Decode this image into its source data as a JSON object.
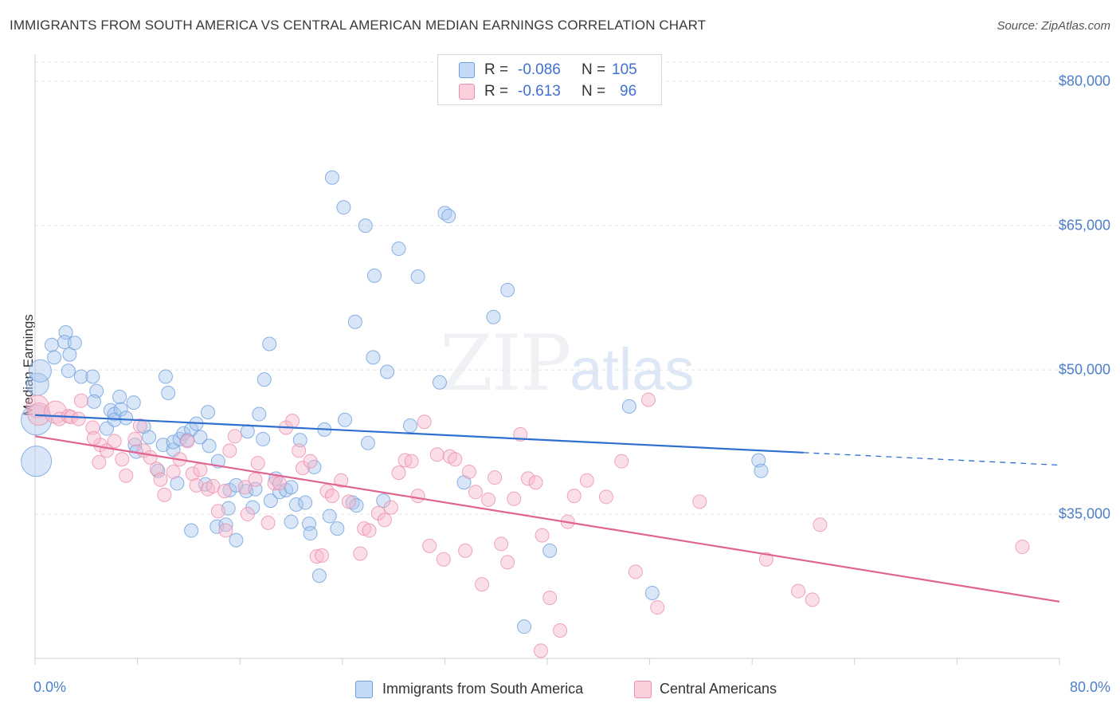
{
  "title": "IMMIGRANTS FROM SOUTH AMERICA VS CENTRAL AMERICAN MEDIAN EARNINGS CORRELATION CHART",
  "source": "Source: ZipAtlas.com",
  "watermark": {
    "zip": "ZIP",
    "atlas": "atlas"
  },
  "legend_top": [
    {
      "r_label": "R =",
      "r_value": "-0.086",
      "n_label": "N =",
      "n_value": "105",
      "color": "#a9c8f0"
    },
    {
      "r_label": "R =",
      "r_value": "-0.613",
      "n_label": "N =",
      "n_value": "96",
      "color": "#f7b8cb"
    }
  ],
  "legend_bottom": [
    {
      "label": "Immigrants from South America",
      "color": "#a9c8f0"
    },
    {
      "label": "Central Americans",
      "color": "#f7b8cb"
    }
  ],
  "chart_data": {
    "type": "scatter",
    "xlabel": "",
    "ylabel": "Median Earnings",
    "xlim": [
      0,
      80
    ],
    "ylim": [
      20000,
      82000
    ],
    "x_tick_labels": [
      "0.0%",
      "80.0%"
    ],
    "y_ticks": [
      {
        "value": 35000,
        "label": "$35,000"
      },
      {
        "value": 50000,
        "label": "$50,000"
      },
      {
        "value": 65000,
        "label": "$65,000"
      },
      {
        "value": 80000,
        "label": "$80,000"
      }
    ],
    "grid": "horizontal dashed",
    "series": [
      {
        "name": "Immigrants from South America",
        "color": "#a9c8f0",
        "edge": "#6f9fdc",
        "trend_color": "#2f6fd0",
        "trend": {
          "x0": 0,
          "y0": 45300,
          "x1": 60,
          "y1": 41400,
          "x_end": 80,
          "y_end": 40100
        },
        "points": [
          [
            0.1,
            40500,
            3
          ],
          [
            0.1,
            44800,
            3
          ],
          [
            0.2,
            48500,
            2
          ],
          [
            0.4,
            49900,
            2
          ],
          [
            1.3,
            52600,
            1
          ],
          [
            1.5,
            51300,
            1
          ],
          [
            2.4,
            53900,
            1
          ],
          [
            2.7,
            51600,
            1
          ],
          [
            2.3,
            52900,
            1
          ],
          [
            3.1,
            52800,
            1
          ],
          [
            2.6,
            49900,
            1
          ],
          [
            3.6,
            49300,
            1
          ],
          [
            4.5,
            49300,
            1
          ],
          [
            4.8,
            47800,
            1
          ],
          [
            4.6,
            46700,
            1
          ],
          [
            5.9,
            45800,
            1
          ],
          [
            5.6,
            43900,
            1
          ],
          [
            6.2,
            45400,
            1
          ],
          [
            6.2,
            44800,
            1
          ],
          [
            6.7,
            45900,
            1
          ],
          [
            6.6,
            47200,
            1
          ],
          [
            7.1,
            45000,
            1
          ],
          [
            7.7,
            46600,
            1
          ],
          [
            7.8,
            42200,
            1
          ],
          [
            7.9,
            41500,
            1
          ],
          [
            8.5,
            44100,
            1
          ],
          [
            8.9,
            43000,
            1
          ],
          [
            9.6,
            39500,
            1
          ],
          [
            10.0,
            42200,
            1
          ],
          [
            10.2,
            49300,
            1
          ],
          [
            10.4,
            47600,
            1
          ],
          [
            10.8,
            41700,
            1
          ],
          [
            10.8,
            42500,
            1
          ],
          [
            11.1,
            38200,
            1
          ],
          [
            11.3,
            42800,
            1
          ],
          [
            11.6,
            43400,
            1
          ],
          [
            11.9,
            42700,
            1
          ],
          [
            12.2,
            33300,
            1
          ],
          [
            12.2,
            43800,
            1
          ],
          [
            12.6,
            44400,
            1
          ],
          [
            12.9,
            43000,
            1
          ],
          [
            13.3,
            38100,
            1
          ],
          [
            13.5,
            45600,
            1
          ],
          [
            13.6,
            42100,
            1
          ],
          [
            14.3,
            40500,
            1
          ],
          [
            14.2,
            33700,
            1
          ],
          [
            14.9,
            33900,
            1
          ],
          [
            15.1,
            35600,
            1
          ],
          [
            15.2,
            37500,
            1
          ],
          [
            15.7,
            32300,
            1
          ],
          [
            15.7,
            38000,
            1
          ],
          [
            16.5,
            37400,
            1
          ],
          [
            16.6,
            43600,
            1
          ],
          [
            17.0,
            35700,
            1
          ],
          [
            17.2,
            37600,
            1
          ],
          [
            17.5,
            45400,
            1
          ],
          [
            17.8,
            42800,
            1
          ],
          [
            17.9,
            49000,
            1
          ],
          [
            18.3,
            52700,
            1
          ],
          [
            18.4,
            36400,
            1
          ],
          [
            18.8,
            38700,
            1
          ],
          [
            19.1,
            37300,
            1
          ],
          [
            19.6,
            37500,
            1
          ],
          [
            20.0,
            37800,
            1
          ],
          [
            20.0,
            34200,
            1
          ],
          [
            20.4,
            36000,
            1
          ],
          [
            20.7,
            42700,
            1
          ],
          [
            21.1,
            36200,
            1
          ],
          [
            21.4,
            34000,
            1
          ],
          [
            21.5,
            33000,
            1
          ],
          [
            21.8,
            39900,
            1
          ],
          [
            22.2,
            28600,
            1
          ],
          [
            22.6,
            43800,
            1
          ],
          [
            23.0,
            34800,
            1
          ],
          [
            23.6,
            33500,
            1
          ],
          [
            23.2,
            70000,
            1
          ],
          [
            24.1,
            66900,
            1
          ],
          [
            24.2,
            44800,
            1
          ],
          [
            24.8,
            36200,
            1
          ],
          [
            25.0,
            55000,
            1
          ],
          [
            25.1,
            35900,
            1
          ],
          [
            25.8,
            65000,
            1
          ],
          [
            26.0,
            42400,
            1
          ],
          [
            26.4,
            51300,
            1
          ],
          [
            26.5,
            59800,
            1
          ],
          [
            27.2,
            36400,
            1
          ],
          [
            27.5,
            49800,
            1
          ],
          [
            28.4,
            62600,
            1
          ],
          [
            29.3,
            44200,
            1
          ],
          [
            29.9,
            59700,
            1
          ],
          [
            31.6,
            48700,
            1
          ],
          [
            32.0,
            66300,
            1
          ],
          [
            32.3,
            66000,
            1
          ],
          [
            33.5,
            38300,
            1
          ],
          [
            35.8,
            55500,
            1
          ],
          [
            36.9,
            58300,
            1
          ],
          [
            38.2,
            23300,
            1
          ],
          [
            40.2,
            31200,
            1
          ],
          [
            46.4,
            46200,
            1
          ],
          [
            48.2,
            26800,
            1
          ],
          [
            56.5,
            40600,
            1
          ],
          [
            56.7,
            39500,
            1
          ]
        ]
      },
      {
        "name": "Central Americans",
        "color": "#f7b8cb",
        "edge": "#ec8fab",
        "trend_color": "#e0648f",
        "trend": {
          "x0": 0,
          "y0": 43100,
          "x1": 80,
          "y1": 25900
        },
        "points": [
          [
            0.2,
            46200,
            2
          ],
          [
            0.3,
            45400,
            2
          ],
          [
            1.6,
            45600,
            2
          ],
          [
            1.9,
            44900,
            1
          ],
          [
            2.6,
            45200,
            1
          ],
          [
            2.8,
            45100,
            1
          ],
          [
            3.4,
            44900,
            1
          ],
          [
            3.6,
            46800,
            1
          ],
          [
            4.5,
            44000,
            1
          ],
          [
            5.1,
            42200,
            1
          ],
          [
            4.6,
            42900,
            1
          ],
          [
            5.0,
            40400,
            1
          ],
          [
            5.6,
            41600,
            1
          ],
          [
            6.2,
            42600,
            1
          ],
          [
            6.8,
            40700,
            1
          ],
          [
            7.1,
            39000,
            1
          ],
          [
            7.8,
            42800,
            1
          ],
          [
            8.2,
            44200,
            1
          ],
          [
            8.5,
            41600,
            1
          ],
          [
            9.0,
            40900,
            1
          ],
          [
            9.5,
            39700,
            1
          ],
          [
            9.8,
            38600,
            1
          ],
          [
            10.1,
            37000,
            1
          ],
          [
            10.8,
            39400,
            1
          ],
          [
            11.3,
            40700,
            1
          ],
          [
            11.9,
            42600,
            1
          ],
          [
            12.3,
            39200,
            1
          ],
          [
            12.6,
            38000,
            1
          ],
          [
            12.9,
            39600,
            1
          ],
          [
            13.5,
            37600,
            1
          ],
          [
            13.9,
            37900,
            1
          ],
          [
            14.3,
            35300,
            1
          ],
          [
            14.8,
            37400,
            1
          ],
          [
            14.9,
            33300,
            1
          ],
          [
            15.2,
            41600,
            1
          ],
          [
            15.6,
            43100,
            1
          ],
          [
            16.4,
            37800,
            1
          ],
          [
            16.6,
            35000,
            1
          ],
          [
            17.2,
            38600,
            1
          ],
          [
            17.4,
            40300,
            1
          ],
          [
            18.2,
            34100,
            1
          ],
          [
            18.7,
            38200,
            1
          ],
          [
            19.1,
            38200,
            1
          ],
          [
            19.6,
            44000,
            1
          ],
          [
            20.1,
            44700,
            1
          ],
          [
            20.6,
            41600,
            1
          ],
          [
            20.9,
            39800,
            1
          ],
          [
            21.5,
            40500,
            1
          ],
          [
            22.0,
            30600,
            1
          ],
          [
            22.4,
            30700,
            1
          ],
          [
            22.8,
            37400,
            1
          ],
          [
            23.2,
            36900,
            1
          ],
          [
            23.9,
            38500,
            1
          ],
          [
            24.5,
            36300,
            1
          ],
          [
            25.4,
            30900,
            1
          ],
          [
            25.7,
            33500,
            1
          ],
          [
            26.1,
            33300,
            1
          ],
          [
            26.8,
            35100,
            1
          ],
          [
            27.3,
            34400,
            1
          ],
          [
            27.8,
            35700,
            1
          ],
          [
            28.4,
            39300,
            1
          ],
          [
            28.9,
            40600,
            1
          ],
          [
            29.4,
            40500,
            1
          ],
          [
            29.9,
            36900,
            1
          ],
          [
            30.4,
            44600,
            1
          ],
          [
            30.8,
            31700,
            1
          ],
          [
            31.4,
            41200,
            1
          ],
          [
            31.9,
            30300,
            1
          ],
          [
            32.4,
            41000,
            1
          ],
          [
            32.8,
            40700,
            1
          ],
          [
            33.6,
            31200,
            1
          ],
          [
            33.9,
            39400,
            1
          ],
          [
            34.4,
            37300,
            1
          ],
          [
            34.9,
            27700,
            1
          ],
          [
            35.4,
            36500,
            1
          ],
          [
            35.9,
            38800,
            1
          ],
          [
            36.4,
            31900,
            1
          ],
          [
            36.9,
            30000,
            1
          ],
          [
            37.4,
            36600,
            1
          ],
          [
            37.9,
            43300,
            1
          ],
          [
            38.5,
            38700,
            1
          ],
          [
            39.1,
            38300,
            1
          ],
          [
            39.6,
            32800,
            1
          ],
          [
            40.2,
            26300,
            1
          ],
          [
            41.0,
            22900,
            1
          ],
          [
            41.6,
            34200,
            1
          ],
          [
            42.1,
            36900,
            1
          ],
          [
            43.1,
            38500,
            1
          ],
          [
            44.6,
            36800,
            1
          ],
          [
            45.8,
            40500,
            1
          ],
          [
            46.9,
            29000,
            1
          ],
          [
            47.9,
            46900,
            1
          ],
          [
            48.6,
            25300,
            1
          ],
          [
            51.9,
            36300,
            1
          ],
          [
            57.1,
            30300,
            1
          ],
          [
            59.6,
            27000,
            1
          ],
          [
            60.7,
            26100,
            1
          ],
          [
            61.3,
            33900,
            1
          ],
          [
            77.1,
            31600,
            1
          ],
          [
            39.5,
            20800,
            1
          ]
        ]
      }
    ]
  }
}
